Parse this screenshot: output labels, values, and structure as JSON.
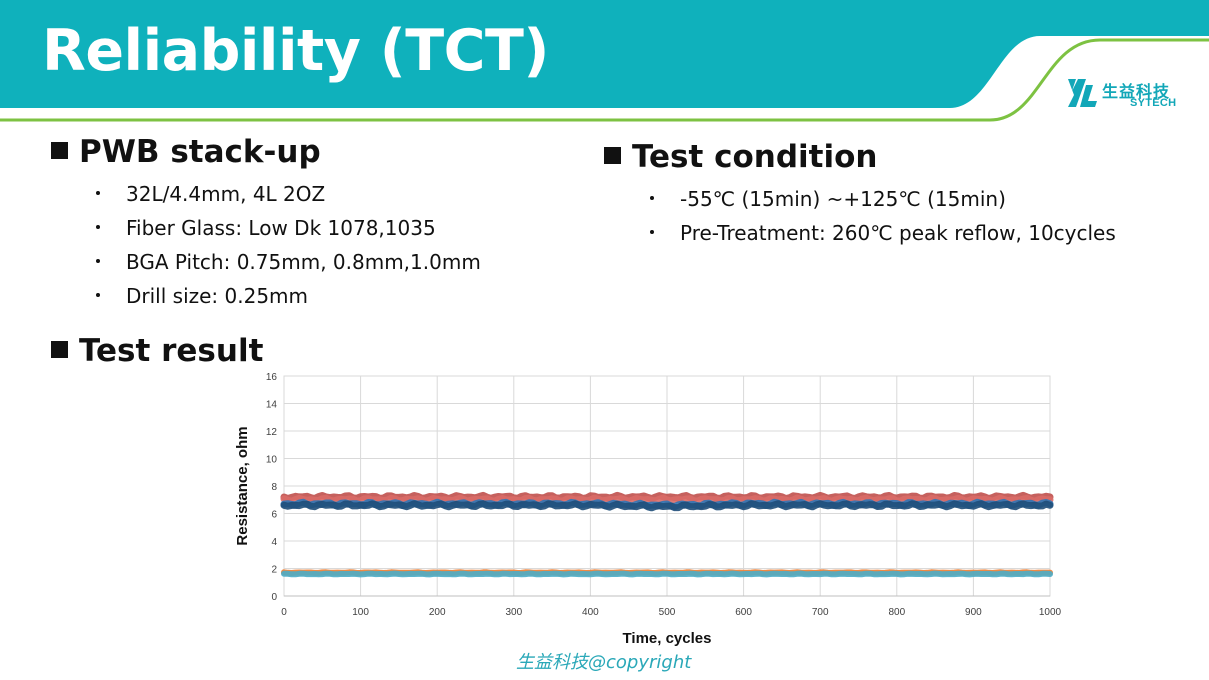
{
  "slide": {
    "title": "Reliability (TCT)",
    "footer": "生益科技@copyright",
    "colors": {
      "header": "#0fb1bc",
      "accent_line": "#7dc242",
      "logo": "#12a7b8"
    }
  },
  "logo": {
    "cn": "生益科技",
    "en": "SYTECH"
  },
  "sections": {
    "pwb": {
      "heading": "PWB stack-up",
      "items": [
        "32L/4.4mm, 4L 2OZ",
        "Fiber Glass: Low Dk 1078,1035",
        "BGA Pitch: 0.75mm, 0.8mm,1.0mm",
        "Drill size: 0.25mm"
      ]
    },
    "condition": {
      "heading": "Test condition",
      "items": [
        "-55℃ (15min) ~+125℃ (15min)",
        "Pre-Treatment: 260℃ peak reflow, 10cycles"
      ]
    },
    "result": {
      "heading": "Test result"
    }
  },
  "chart_data": {
    "type": "line",
    "xlabel": "Time, cycles",
    "ylabel": "Resistance, ohm",
    "xlim": [
      0,
      1000
    ],
    "ylim": [
      0,
      16
    ],
    "xticks": [
      0,
      100,
      200,
      300,
      400,
      500,
      600,
      700,
      800,
      900,
      1000
    ],
    "yticks": [
      0,
      2,
      4,
      6,
      8,
      10,
      12,
      14,
      16
    ],
    "grid": true,
    "series": [
      {
        "color": "#c0504d",
        "values": [
          [
            0,
            7.2
          ],
          [
            100,
            7.2
          ],
          [
            200,
            7.2
          ],
          [
            300,
            7.2
          ],
          [
            400,
            7.2
          ],
          [
            500,
            7.2
          ],
          [
            600,
            7.2
          ],
          [
            700,
            7.2
          ],
          [
            800,
            7.2
          ],
          [
            900,
            7.2
          ],
          [
            1000,
            7.2
          ]
        ]
      },
      {
        "color": "#d96b67",
        "values": [
          [
            0,
            7.0
          ],
          [
            100,
            7.0
          ],
          [
            200,
            7.0
          ],
          [
            300,
            7.0
          ],
          [
            400,
            7.0
          ],
          [
            500,
            7.0
          ],
          [
            600,
            7.0
          ],
          [
            700,
            7.0
          ],
          [
            800,
            7.0
          ],
          [
            900,
            7.0
          ],
          [
            1000,
            7.0
          ]
        ]
      },
      {
        "color": "#2e75b6",
        "values": [
          [
            0,
            6.7
          ],
          [
            100,
            6.7
          ],
          [
            200,
            6.7
          ],
          [
            300,
            6.7
          ],
          [
            400,
            6.7
          ],
          [
            500,
            6.6
          ],
          [
            600,
            6.7
          ],
          [
            700,
            6.7
          ],
          [
            800,
            6.7
          ],
          [
            900,
            6.7
          ],
          [
            1000,
            6.7
          ]
        ]
      },
      {
        "color": "#1f4e79",
        "values": [
          [
            0,
            6.6
          ],
          [
            100,
            6.6
          ],
          [
            200,
            6.6
          ],
          [
            300,
            6.6
          ],
          [
            400,
            6.6
          ],
          [
            500,
            6.5
          ],
          [
            600,
            6.6
          ],
          [
            700,
            6.6
          ],
          [
            800,
            6.6
          ],
          [
            900,
            6.6
          ],
          [
            1000,
            6.6
          ]
        ]
      },
      {
        "color": "#ed7d31",
        "values": [
          [
            0,
            1.7
          ],
          [
            100,
            1.7
          ],
          [
            200,
            1.7
          ],
          [
            300,
            1.7
          ],
          [
            400,
            1.7
          ],
          [
            500,
            1.7
          ],
          [
            600,
            1.7
          ],
          [
            700,
            1.7
          ],
          [
            800,
            1.7
          ],
          [
            900,
            1.7
          ],
          [
            1000,
            1.7
          ]
        ]
      },
      {
        "color": "#4bacc6",
        "values": [
          [
            0,
            1.6
          ],
          [
            100,
            1.6
          ],
          [
            200,
            1.6
          ],
          [
            300,
            1.6
          ],
          [
            400,
            1.6
          ],
          [
            500,
            1.6
          ],
          [
            600,
            1.6
          ],
          [
            700,
            1.6
          ],
          [
            800,
            1.6
          ],
          [
            900,
            1.6
          ],
          [
            1000,
            1.6
          ]
        ]
      }
    ]
  }
}
